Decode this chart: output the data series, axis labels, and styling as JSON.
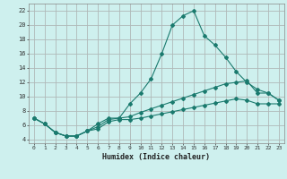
{
  "xlabel": "Humidex (Indice chaleur)",
  "ylabel": "",
  "xlim": [
    -0.5,
    23.5
  ],
  "ylim": [
    3.5,
    23
  ],
  "xticks": [
    0,
    1,
    2,
    3,
    4,
    5,
    6,
    7,
    8,
    9,
    10,
    11,
    12,
    13,
    14,
    15,
    16,
    17,
    18,
    19,
    20,
    21,
    22,
    23
  ],
  "yticks": [
    4,
    6,
    8,
    10,
    12,
    14,
    16,
    18,
    20,
    22
  ],
  "background_color": "#cef0ee",
  "grid_color": "#b0b8b8",
  "line_color": "#1a7a6e",
  "line1_x": [
    0,
    1,
    2,
    3,
    4,
    5,
    6,
    7,
    8,
    9,
    10,
    11,
    12,
    13,
    14,
    15,
    16,
    17,
    18,
    19,
    20,
    21,
    22,
    23
  ],
  "line1_y": [
    7.0,
    6.2,
    5.0,
    4.5,
    4.5,
    5.2,
    6.2,
    7.0,
    7.0,
    9.0,
    10.5,
    12.5,
    16.0,
    20.0,
    21.3,
    22.0,
    18.5,
    17.2,
    15.5,
    13.5,
    12.0,
    11.0,
    10.5,
    9.5
  ],
  "line2_x": [
    0,
    1,
    2,
    3,
    4,
    5,
    6,
    7,
    8,
    9,
    10,
    11,
    12,
    13,
    14,
    15,
    16,
    17,
    18,
    19,
    20,
    21,
    22,
    23
  ],
  "line2_y": [
    7.0,
    6.2,
    5.0,
    4.5,
    4.5,
    5.2,
    5.8,
    6.8,
    7.0,
    7.2,
    7.8,
    8.3,
    8.8,
    9.3,
    9.8,
    10.3,
    10.8,
    11.3,
    11.8,
    12.0,
    12.2,
    10.5,
    10.5,
    9.5
  ],
  "line3_x": [
    0,
    1,
    2,
    3,
    4,
    5,
    6,
    7,
    8,
    9,
    10,
    11,
    12,
    13,
    14,
    15,
    16,
    17,
    18,
    19,
    20,
    21,
    22,
    23
  ],
  "line3_y": [
    7.0,
    6.2,
    5.0,
    4.5,
    4.5,
    5.2,
    5.5,
    6.5,
    6.8,
    6.8,
    7.0,
    7.3,
    7.6,
    7.9,
    8.2,
    8.5,
    8.8,
    9.1,
    9.4,
    9.7,
    9.5,
    9.0,
    9.0,
    9.0
  ]
}
